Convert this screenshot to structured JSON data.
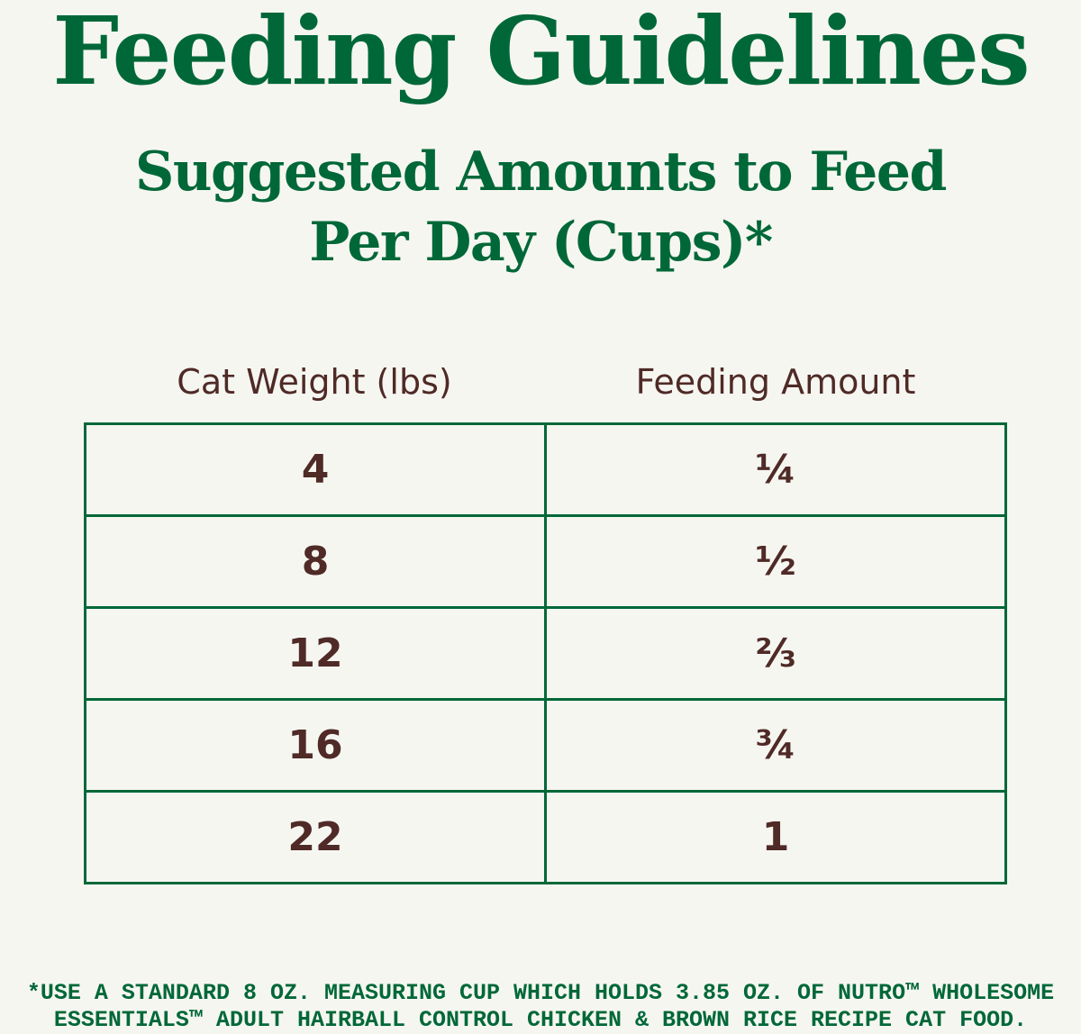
{
  "title": "Feeding Guidelines",
  "subtitle_line1": "Suggested Amounts to Feed",
  "subtitle_line2": "Per Day (Cups)*",
  "table": {
    "headers": [
      "Cat Weight (lbs)",
      "Feeding Amount"
    ],
    "rows": [
      [
        "4",
        "¼"
      ],
      [
        "8",
        "½"
      ],
      [
        "12",
        "⅔"
      ],
      [
        "16",
        "¾"
      ],
      [
        "22",
        "1"
      ]
    ]
  },
  "footnote_line1": "*USE A STANDARD 8 OZ. MEASURING CUP WHICH HOLDS 3.85 OZ. OF NUTRO™ WHOLESOME",
  "footnote_line2": "ESSENTIALS™ ADULT HAIRBALL CONTROL CHICKEN & BROWN RICE RECIPE CAT FOOD.",
  "colors": {
    "green": "#006838",
    "brown": "#4f2a26",
    "background": "#f6f6f1"
  }
}
